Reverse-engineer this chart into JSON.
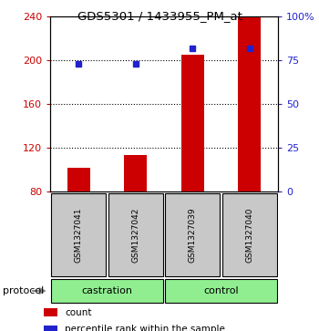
{
  "title": "GDS5301 / 1433955_PM_at",
  "samples": [
    "GSM1327041",
    "GSM1327042",
    "GSM1327039",
    "GSM1327040"
  ],
  "counts": [
    102,
    113,
    205,
    240
  ],
  "percentiles": [
    73,
    73,
    82,
    82
  ],
  "ylim_left": [
    80,
    240
  ],
  "ylim_right": [
    0,
    100
  ],
  "yticks_left": [
    80,
    120,
    160,
    200,
    240
  ],
  "yticks_right": [
    0,
    25,
    50,
    75,
    100
  ],
  "ytick_labels_right": [
    "0",
    "25",
    "50",
    "75",
    "100%"
  ],
  "bar_color": "#cc0000",
  "dot_color": "#2222cc",
  "left_tick_color": "#cc0000",
  "right_tick_color": "#2222cc",
  "sample_box_color": "#c8c8c8",
  "group_box_color": "#90ee90",
  "bar_width": 0.4,
  "group_info": [
    [
      "castration",
      0,
      0.5
    ],
    [
      "control",
      0.5,
      1.0
    ]
  ],
  "legend_items": [
    {
      "color": "#cc0000",
      "label": "count"
    },
    {
      "color": "#2222cc",
      "label": "percentile rank within the sample"
    }
  ]
}
